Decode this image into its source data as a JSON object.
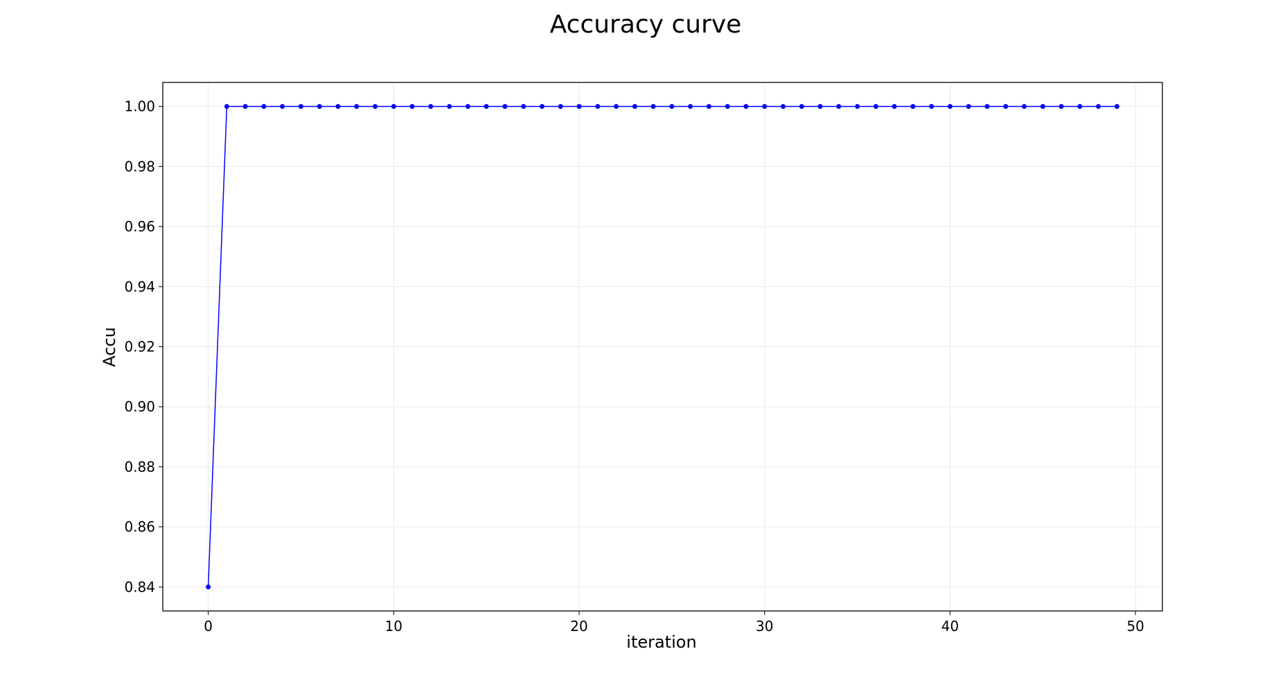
{
  "chart_data": {
    "type": "line",
    "title": "Accuracy curve",
    "xlabel": "iteration",
    "ylabel": "Accu",
    "xlim": [
      -2.45,
      51.45
    ],
    "ylim": [
      0.832,
      1.008
    ],
    "xticks": [
      0,
      10,
      20,
      30,
      40,
      50
    ],
    "yticks": [
      0.84,
      0.86,
      0.88,
      0.9,
      0.92,
      0.94,
      0.96,
      0.98,
      1.0
    ],
    "xtick_labels": [
      "0",
      "10",
      "20",
      "30",
      "40",
      "50"
    ],
    "ytick_labels": [
      "0.84",
      "0.86",
      "0.88",
      "0.90",
      "0.92",
      "0.94",
      "0.96",
      "0.98",
      "1.00"
    ],
    "grid": true,
    "series": [
      {
        "color": "#0000ff",
        "marker": "circle",
        "x": [
          0,
          1,
          2,
          3,
          4,
          5,
          6,
          7,
          8,
          9,
          10,
          11,
          12,
          13,
          14,
          15,
          16,
          17,
          18,
          19,
          20,
          21,
          22,
          23,
          24,
          25,
          26,
          27,
          28,
          29,
          30,
          31,
          32,
          33,
          34,
          35,
          36,
          37,
          38,
          39,
          40,
          41,
          42,
          43,
          44,
          45,
          46,
          47,
          48,
          49
        ],
        "y": [
          0.84,
          1.0,
          1.0,
          1.0,
          1.0,
          1.0,
          1.0,
          1.0,
          1.0,
          1.0,
          1.0,
          1.0,
          1.0,
          1.0,
          1.0,
          1.0,
          1.0,
          1.0,
          1.0,
          1.0,
          1.0,
          1.0,
          1.0,
          1.0,
          1.0,
          1.0,
          1.0,
          1.0,
          1.0,
          1.0,
          1.0,
          1.0,
          1.0,
          1.0,
          1.0,
          1.0,
          1.0,
          1.0,
          1.0,
          1.0,
          1.0,
          1.0,
          1.0,
          1.0,
          1.0,
          1.0,
          1.0,
          1.0,
          1.0,
          1.0
        ]
      }
    ]
  }
}
